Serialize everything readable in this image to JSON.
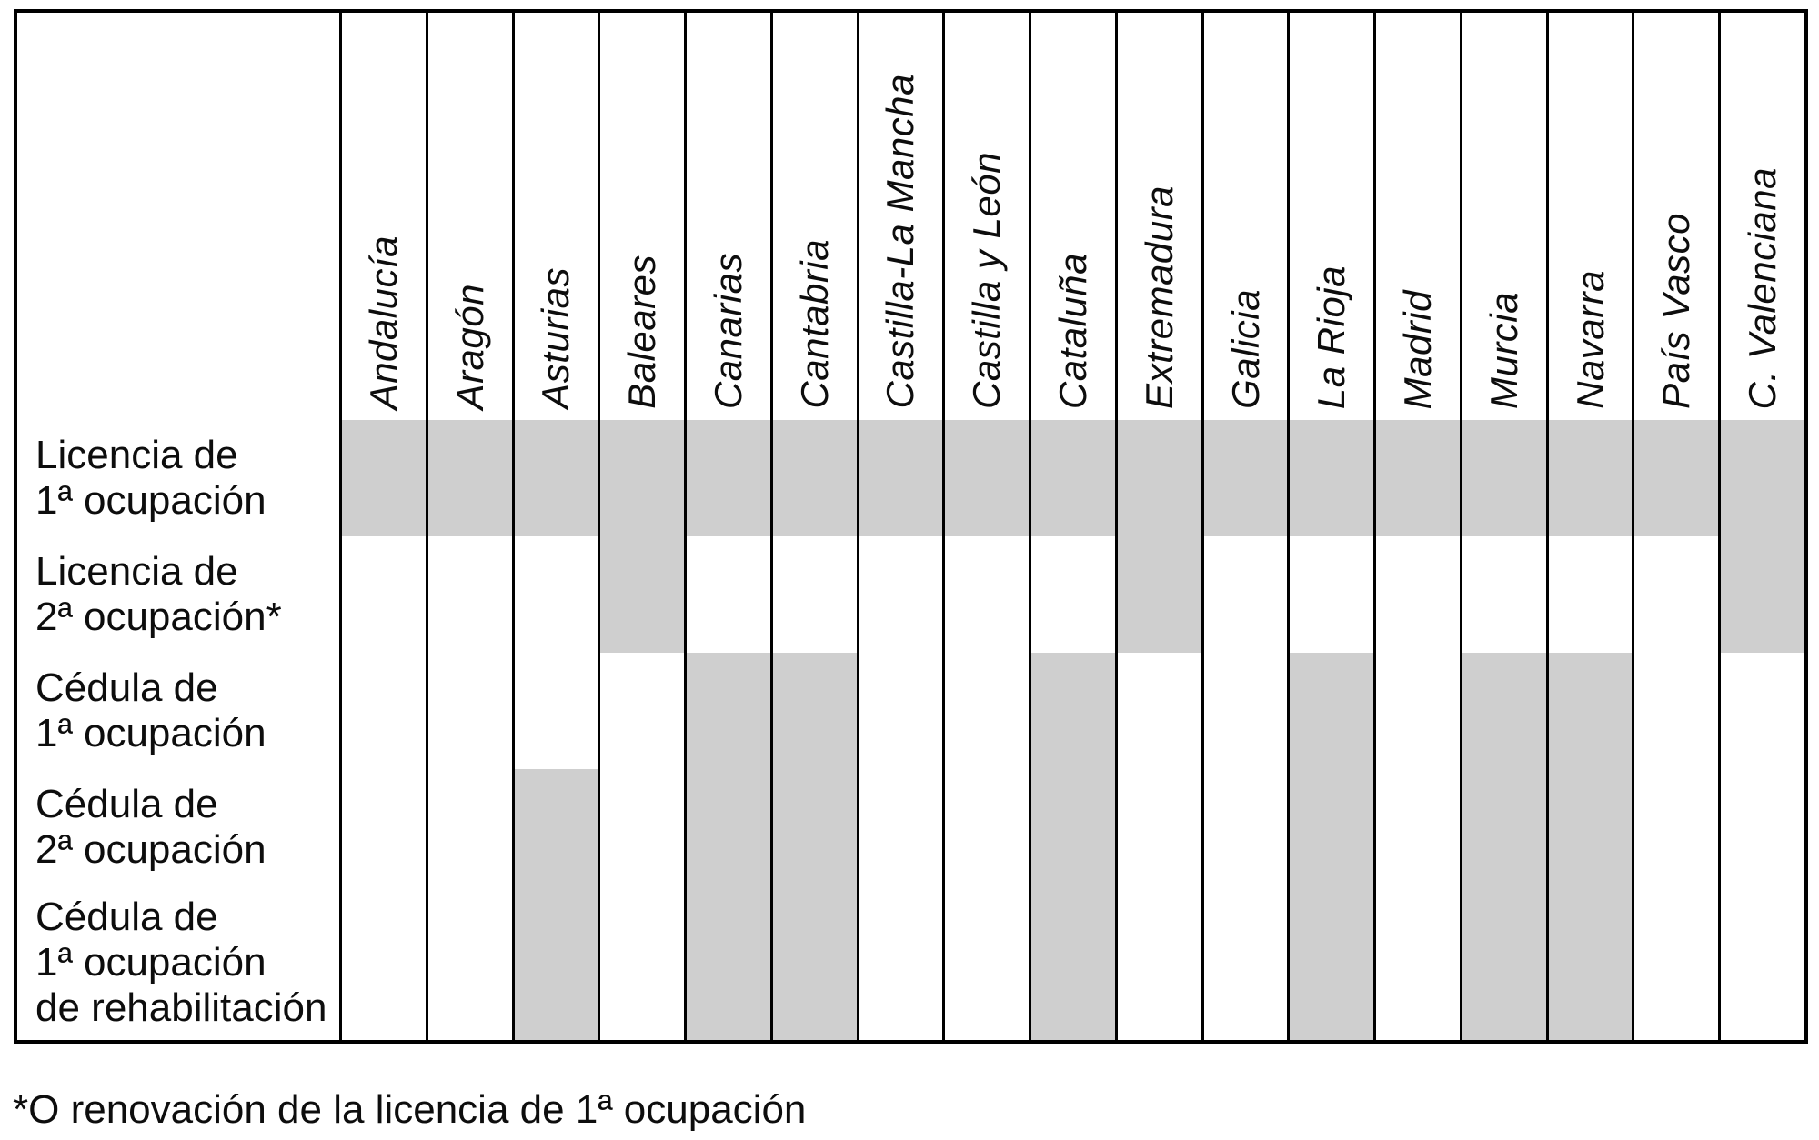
{
  "chart_data": {
    "type": "table",
    "description": "Matrix of occupancy licence/certificate types required per Spanish autonomous community; shaded cell means the document type exists in that community",
    "columns": [
      "Andalucía",
      "Aragón",
      "Asturias",
      "Baleares",
      "Canarias",
      "Cantabria",
      "Castilla-La Mancha",
      "Castilla y León",
      "Cataluña",
      "Extremadura",
      "Galicia",
      "La Rioja",
      "Madrid",
      "Murcia",
      "Navarra",
      "País Vasco",
      "C. Valenciana"
    ],
    "rows": [
      {
        "label": "Licencia de 1ª ocupación",
        "label_lines": [
          "Licencia de",
          "1ª ocupación"
        ],
        "shaded": [
          1,
          1,
          1,
          1,
          1,
          1,
          1,
          1,
          1,
          1,
          1,
          1,
          1,
          1,
          1,
          1,
          1
        ]
      },
      {
        "label": "Licencia de 2ª ocupación*",
        "label_lines": [
          "Licencia de",
          "2ª ocupación*"
        ],
        "shaded": [
          0,
          0,
          0,
          1,
          0,
          0,
          0,
          0,
          0,
          1,
          0,
          0,
          0,
          0,
          0,
          0,
          1
        ]
      },
      {
        "label": "Cédula de 1ª ocupación",
        "label_lines": [
          "Cédula de",
          "1ª ocupación"
        ],
        "shaded": [
          0,
          0,
          0,
          0,
          1,
          1,
          0,
          0,
          1,
          0,
          0,
          1,
          0,
          1,
          1,
          0,
          0
        ]
      },
      {
        "label": "Cédula de 2ª ocupación",
        "label_lines": [
          "Cédula de",
          "2ª ocupación"
        ],
        "shaded": [
          0,
          0,
          1,
          0,
          1,
          1,
          0,
          0,
          1,
          0,
          0,
          1,
          0,
          1,
          1,
          0,
          0
        ]
      },
      {
        "label": "Cédula de 1ª ocupación de rehabilitación",
        "label_lines": [
          "Cédula de",
          "1ª ocupación",
          "de rehabilitación"
        ],
        "shaded": [
          0,
          0,
          1,
          0,
          1,
          1,
          0,
          0,
          1,
          0,
          0,
          1,
          0,
          1,
          1,
          0,
          0
        ]
      }
    ],
    "footnote": "*O renovación de la licencia de 1ª ocupación",
    "layout": {
      "header_orientation": "rotated-90-bottom-to-top",
      "grid_lines": "vertical-only",
      "legend_position": "none"
    },
    "colors": {
      "shaded_cell": "#cfcfcf",
      "grid_line": "#000000",
      "text": "#0d0d0d",
      "background": "#ffffff"
    }
  }
}
